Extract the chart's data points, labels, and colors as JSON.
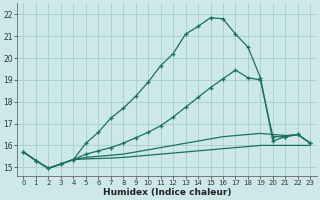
{
  "xlabel": "Humidex (Indice chaleur)",
  "bg_color": "#cce8e8",
  "grid_color": "#aacccc",
  "line_color": "#1a7060",
  "xlim": [
    -0.5,
    23.5
  ],
  "ylim": [
    14.6,
    22.5
  ],
  "xticks": [
    0,
    1,
    2,
    3,
    4,
    5,
    6,
    7,
    8,
    9,
    10,
    11,
    12,
    13,
    14,
    15,
    16,
    17,
    18,
    19,
    20,
    21,
    22,
    23
  ],
  "yticks": [
    15,
    16,
    17,
    18,
    19,
    20,
    21,
    22
  ],
  "line1_x": [
    0,
    1,
    2,
    3,
    4,
    5,
    6,
    7,
    8,
    9,
    10,
    11,
    12,
    13,
    14,
    15,
    16,
    17,
    18,
    19,
    20,
    21,
    22,
    23
  ],
  "line1_y": [
    15.7,
    15.3,
    14.95,
    15.15,
    15.35,
    16.1,
    16.6,
    17.25,
    17.7,
    18.25,
    18.9,
    19.65,
    20.2,
    21.1,
    21.45,
    21.85,
    21.8,
    21.1,
    20.5,
    19.1,
    16.2,
    16.4,
    16.5,
    16.1
  ],
  "line2_x": [
    0,
    1,
    2,
    3,
    4,
    5,
    6,
    7,
    8,
    9,
    10,
    11,
    12,
    13,
    14,
    15,
    16,
    17,
    18,
    19,
    20,
    21,
    22,
    23
  ],
  "line2_y": [
    15.7,
    15.3,
    14.95,
    15.15,
    15.35,
    15.6,
    15.75,
    15.9,
    16.1,
    16.35,
    16.6,
    16.9,
    17.3,
    17.75,
    18.2,
    18.65,
    19.05,
    19.45,
    19.1,
    19.0,
    16.4,
    16.4,
    16.5,
    16.1
  ],
  "line3_x": [
    0,
    1,
    2,
    3,
    4,
    5,
    6,
    7,
    8,
    9,
    10,
    11,
    12,
    13,
    14,
    15,
    16,
    17,
    18,
    19,
    20,
    21,
    22,
    23
  ],
  "line3_y": [
    15.7,
    15.3,
    14.95,
    15.15,
    15.35,
    15.45,
    15.5,
    15.55,
    15.6,
    15.7,
    15.8,
    15.9,
    16.0,
    16.1,
    16.2,
    16.3,
    16.4,
    16.45,
    16.5,
    16.55,
    16.5,
    16.45,
    16.5,
    16.1
  ],
  "line4_x": [
    0,
    1,
    2,
    3,
    4,
    5,
    6,
    7,
    8,
    9,
    10,
    11,
    12,
    13,
    14,
    15,
    16,
    17,
    18,
    19,
    20,
    21,
    22,
    23
  ],
  "line4_y": [
    15.7,
    15.3,
    14.95,
    15.15,
    15.35,
    15.38,
    15.4,
    15.42,
    15.45,
    15.5,
    15.55,
    15.6,
    15.65,
    15.7,
    15.75,
    15.8,
    15.85,
    15.9,
    15.95,
    16.0,
    16.0,
    16.0,
    16.0,
    16.0
  ]
}
